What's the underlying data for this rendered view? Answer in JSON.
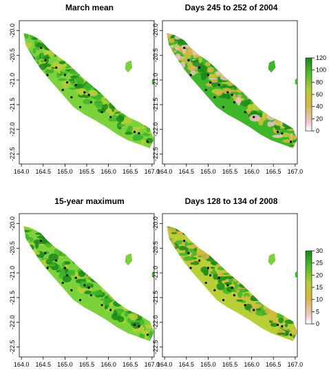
{
  "colors": {
    "green_dark": "#1a8a1a",
    "green_mid": "#3fb52a",
    "green_light": "#7bd23a",
    "yellow_green": "#b9cf36",
    "tan": "#d7b542",
    "pink": "#eec2c2",
    "site_dot": "#000000"
  },
  "x_ticks": [
    "164.0",
    "164.5",
    "165.0",
    "165.5",
    "166.0",
    "166.5",
    "167.0"
  ],
  "y_ticks": [
    "-20.0",
    "-20.5",
    "-21.0",
    "-21.5",
    "-22.0",
    "-22.5"
  ],
  "panels": [
    {
      "title": "March mean",
      "palette": "green"
    },
    {
      "title": "Days 245 to 252 of 2004",
      "palette": "mixed"
    },
    {
      "title": "15-year maximum",
      "palette": "green"
    },
    {
      "title": "Days 128 to 134 of 2008",
      "palette": "yellow"
    }
  ],
  "legends": [
    {
      "ticks": [
        "120",
        "100",
        "80",
        "60",
        "40",
        "20",
        "0"
      ]
    },
    {
      "ticks": [
        "30",
        "25",
        "20",
        "15",
        "10",
        "5",
        "0"
      ]
    }
  ]
}
